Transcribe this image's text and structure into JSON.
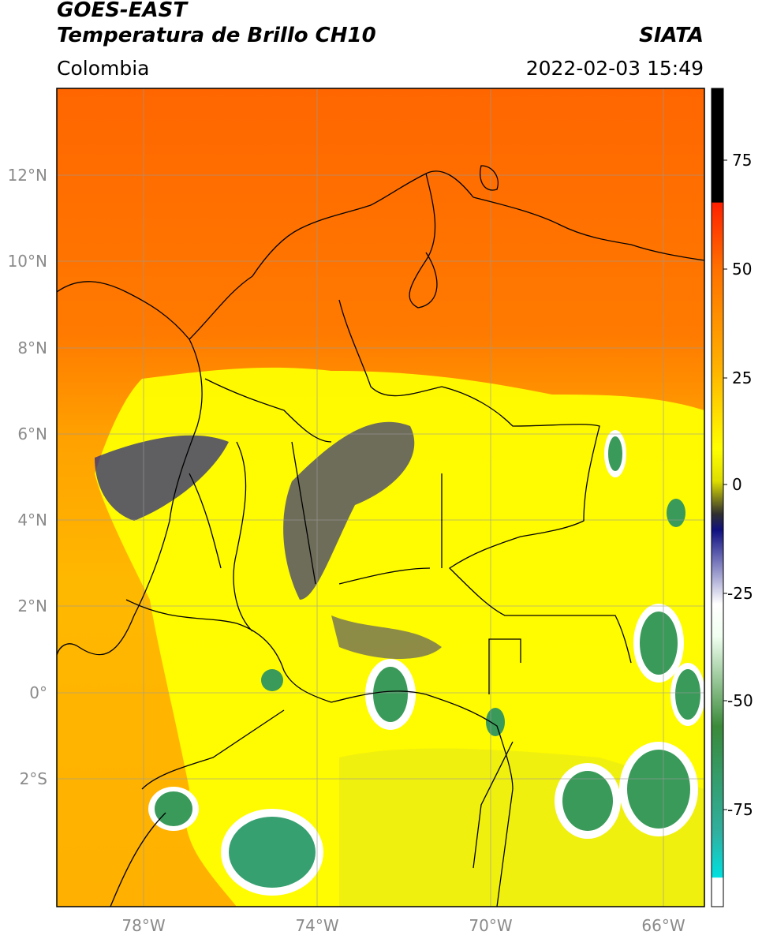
{
  "header": {
    "satellite": "GOES-EAST",
    "product": "Temperatura de Brillo CH10",
    "org": "SIATA",
    "region": "Colombia",
    "datetime": "2022-02-03 15:49"
  },
  "map": {
    "lon_labels": [
      "78°W",
      "74°W",
      "70°W",
      "66°W"
    ],
    "lat_labels": [
      "12°N",
      "10°N",
      "8°N",
      "6°N",
      "4°N",
      "2°N",
      "0°",
      "2°S"
    ],
    "palette": {
      "warm": "#ff6a00",
      "mid": "#ffa500",
      "yellow": "#ffff00",
      "navy": "#1a1a80",
      "white": "#ffffff",
      "green": "#3a9a5a",
      "border": "#000000",
      "grid": "#9a9a9a"
    }
  },
  "colorbar": {
    "ticks": [
      "75",
      "50",
      "25",
      "0",
      "-25",
      "-50",
      "-75"
    ]
  }
}
